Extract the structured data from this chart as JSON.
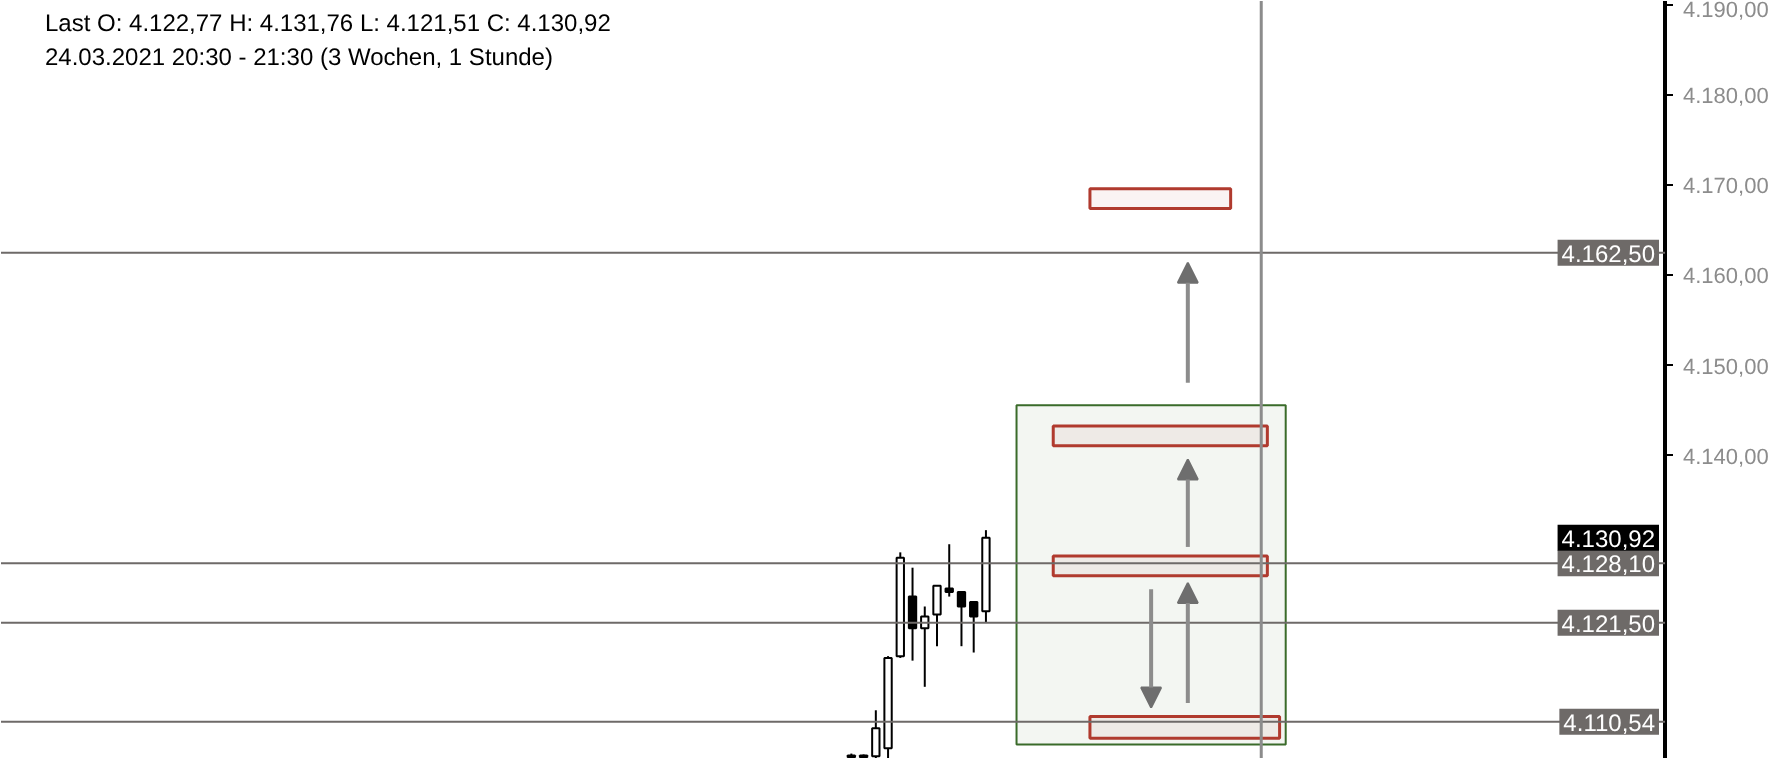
{
  "chart_data": {
    "type": "candlestick",
    "title": "Last  O: 4.122,77  H: 4.131,76  L: 4.121,51  C: 4.130,92",
    "subtitle": "24.03.2021 20:30 - 21:30 (3 Wochen, 1 Stunde)",
    "categories": [
      null,
      null,
      null,
      null,
      null,
      null,
      null,
      null,
      null,
      null,
      null,
      null,
      null,
      null,
      null,
      null,
      null,
      null,
      null,
      null,
      null,
      null,
      null,
      null,
      null,
      null,
      null,
      null,
      null,
      null,
      null,
      null,
      null,
      null,
      null,
      null,
      null,
      null,
      null,
      null,
      null,
      null,
      null,
      null,
      null,
      null,
      null,
      null,
      null,
      null,
      null,
      null,
      null,
      null,
      null,
      null,
      null,
      null,
      null,
      null,
      null,
      null,
      null,
      null,
      null,
      null,
      null,
      null,
      null,
      null,
      null,
      null,
      null,
      null,
      null,
      null,
      null,
      null,
      null,
      null,
      null,
      null,
      null,
      null,
      null,
      null,
      null,
      null,
      null,
      null,
      null,
      null,
      null,
      null,
      null,
      null,
      null,
      null,
      null,
      null,
      null,
      null,
      null,
      null,
      null,
      null,
      null,
      null,
      null,
      null,
      null,
      null,
      null,
      null,
      null,
      null,
      null,
      null,
      null,
      null,
      null,
      null,
      null,
      null,
      null,
      null,
      null,
      null,
      null,
      null,
      null,
      null,
      null,
      null,
      null,
      null
    ],
    "ohlc": [
      null,
      null,
      null,
      null,
      null,
      null,
      null,
      null,
      null,
      null,
      null,
      null,
      null,
      null,
      null,
      null,
      null,
      null,
      null,
      null,
      null,
      null,
      null,
      null,
      null,
      null,
      null,
      null,
      null,
      null,
      null,
      null,
      null,
      null,
      null,
      null,
      null,
      null,
      null,
      null,
      null,
      null,
      null,
      null,
      null,
      null,
      null,
      null,
      null,
      null,
      null,
      null,
      null,
      null,
      null,
      null,
      null,
      null,
      null,
      null,
      null,
      null,
      null,
      null,
      null,
      null,
      null,
      null,
      null,
      [
        4106.6,
        4107.0,
        4106.5,
        4106.8
      ],
      [
        4106.6,
        4106.9,
        4106.5,
        4106.8
      ],
      [
        4106.7,
        4111.8,
        4106.5,
        4109.8
      ],
      [
        4107.6,
        4117.8,
        4106.5,
        4117.6
      ],
      [
        4117.8,
        4129.3,
        4117.6,
        4128.7
      ],
      [
        4124.4,
        4127.6,
        4117.3,
        4120.9
      ],
      [
        4120.9,
        4123.3,
        4114.4,
        4122.2
      ],
      [
        4122.4,
        4125.6,
        4118.9,
        4125.6
      ],
      [
        4125.3,
        4130.2,
        4124.4,
        4124.9
      ],
      [
        4124.9,
        4124.9,
        4118.9,
        4123.3
      ],
      [
        4123.8,
        4123.8,
        4118.2,
        4122.2
      ],
      [
        4122.77,
        4131.76,
        4121.51,
        4130.92
      ],
      null,
      null,
      null,
      null,
      null,
      null,
      null,
      null,
      null,
      null,
      null,
      null,
      null,
      null,
      null,
      null,
      null,
      null,
      null,
      null,
      null,
      null,
      null,
      null,
      null,
      null,
      null,
      null,
      null,
      null,
      null,
      null,
      null,
      null,
      null,
      null,
      null,
      null,
      null,
      null,
      null,
      null,
      null,
      null,
      null,
      null,
      null,
      null,
      null,
      null,
      null,
      null,
      null,
      null,
      null
    ],
    "ylim": [
      4106.4,
      4190.4
    ],
    "yticks": [
      {
        "value": 4140,
        "label": "4.140,00"
      },
      {
        "value": 4150,
        "label": "4.150,00"
      },
      {
        "value": 4160,
        "label": "4.160,00"
      },
      {
        "value": 4170,
        "label": "4.170,00"
      },
      {
        "value": 4180,
        "label": "4.180,00"
      },
      {
        "value": 4190,
        "label": "4.190,00"
      }
    ],
    "ref_lines": [
      {
        "axis": "y",
        "value": 4162.5,
        "label": "4.162,50",
        "color": "#6e6a68"
      },
      {
        "axis": "y",
        "value": 4128.1,
        "label": "4.128,10",
        "color": "#6e6a68"
      },
      {
        "axis": "y",
        "value": 4121.5,
        "label": "4.121,50",
        "color": "#6e6a68"
      },
      {
        "axis": "y",
        "value": 4110.54,
        "label": "4.110,54",
        "color": "#6e6a68"
      }
    ],
    "bands": [
      {
        "axis": "y",
        "from": 4108.0,
        "to": 4145.6,
        "color": "#3a6b2a"
      },
      {
        "axis": "y",
        "from": 4167.4,
        "to": 4169.6,
        "color": "#b03a2e"
      },
      {
        "axis": "y",
        "from": 4141.1,
        "to": 4143.3,
        "color": "#b03a2e"
      },
      {
        "axis": "y",
        "from": 4126.7,
        "to": 4128.9,
        "color": "#b03a2e"
      },
      {
        "axis": "y",
        "from": 4108.7,
        "to": 4111.1,
        "color": "#b03a2e"
      }
    ],
    "annotations": [
      "4.130,92"
    ],
    "grid": false
  }
}
